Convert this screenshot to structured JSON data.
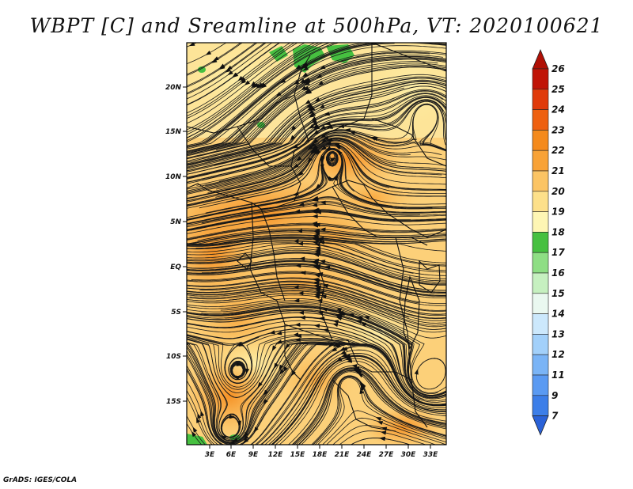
{
  "title": "WBPT [C] and Sreamline at 500hPa, VT: 2020100621",
  "credit": "GrADS: IGES/COLA",
  "map": {
    "lon_labels": [
      "3E",
      "6E",
      "9E",
      "12E",
      "15E",
      "18E",
      "21E",
      "24E",
      "27E",
      "30E",
      "33E"
    ],
    "lat_labels": [
      "20N",
      "15N",
      "10N",
      "5N",
      "EQ",
      "5S",
      "10S",
      "15S"
    ]
  },
  "colorbar": {
    "labels": [
      "7",
      "9",
      "11",
      "12",
      "13",
      "14",
      "15",
      "16",
      "17",
      "18",
      "19",
      "20",
      "21",
      "22",
      "23",
      "24",
      "25",
      "26"
    ],
    "colors": [
      "#2a62d8",
      "#3c7ee8",
      "#5a9af2",
      "#7ab4f6",
      "#a2d0fa",
      "#cce8fc",
      "#eaf8f0",
      "#c6f0c0",
      "#8ede84",
      "#46c040",
      "#fef6b4",
      "#fde08a",
      "#fbc464",
      "#f8a236",
      "#f48a1c",
      "#ee6010",
      "#e03a0a",
      "#c01406"
    ],
    "under_color": "#2a62d8",
    "over_color": "#b01005"
  }
}
